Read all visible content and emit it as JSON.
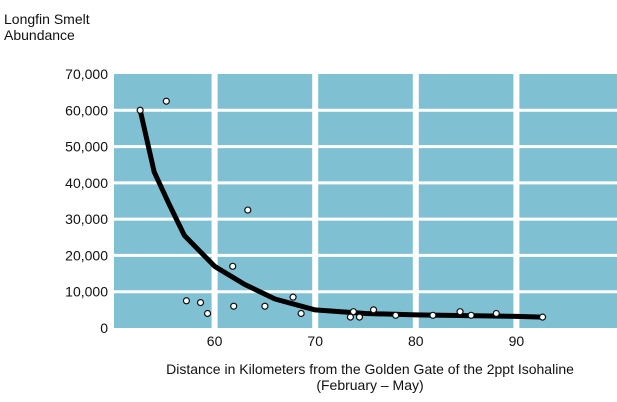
{
  "chart_data": {
    "type": "scatter",
    "title": "Longfin Smelt\nAbundance",
    "xlabel": "Distance in Kilometers from the Golden Gate of the 2ppt Isohaline\n(February – May)",
    "ylabel": "",
    "xlim": [
      50,
      100
    ],
    "ylim": [
      0,
      70000
    ],
    "x_ticks": [
      60,
      70,
      80,
      90
    ],
    "x_tick_labels": [
      "60",
      "70",
      "80",
      "90"
    ],
    "y_ticks": [
      0,
      10000,
      20000,
      30000,
      40000,
      50000,
      60000,
      70000
    ],
    "y_tick_labels": [
      "0",
      "10,000",
      "20,000",
      "30,000",
      "40,000",
      "50,000",
      "60,000",
      "70,000"
    ],
    "grid": true,
    "colors": {
      "plot_background": "#7fc1d3",
      "grid_lines": "#ffffff",
      "points_fill": "#ffffff",
      "points_stroke": "#111111",
      "curve": "#000000"
    },
    "series": [
      {
        "type": "scatter",
        "points": [
          {
            "x": 52.6,
            "y": 60000
          },
          {
            "x": 55.2,
            "y": 62500
          },
          {
            "x": 57.2,
            "y": 7500
          },
          {
            "x": 58.6,
            "y": 7000
          },
          {
            "x": 59.3,
            "y": 4000
          },
          {
            "x": 61.8,
            "y": 17000
          },
          {
            "x": 61.9,
            "y": 6000
          },
          {
            "x": 63.3,
            "y": 32500
          },
          {
            "x": 65.0,
            "y": 6000
          },
          {
            "x": 67.8,
            "y": 8500
          },
          {
            "x": 68.6,
            "y": 4000
          },
          {
            "x": 73.5,
            "y": 3000
          },
          {
            "x": 73.8,
            "y": 4500
          },
          {
            "x": 74.4,
            "y": 3000
          },
          {
            "x": 75.8,
            "y": 5000
          },
          {
            "x": 78.0,
            "y": 3500
          },
          {
            "x": 81.7,
            "y": 3500
          },
          {
            "x": 84.4,
            "y": 4500
          },
          {
            "x": 85.5,
            "y": 3500
          },
          {
            "x": 88.0,
            "y": 4000
          },
          {
            "x": 92.6,
            "y": 3000
          }
        ]
      },
      {
        "type": "line",
        "points": [
          {
            "x": 52.6,
            "y": 60000
          },
          {
            "x": 54.0,
            "y": 43000
          },
          {
            "x": 55.5,
            "y": 34000
          },
          {
            "x": 57.0,
            "y": 25500
          },
          {
            "x": 60.0,
            "y": 17000
          },
          {
            "x": 63.0,
            "y": 12000
          },
          {
            "x": 66.0,
            "y": 8000
          },
          {
            "x": 70.0,
            "y": 5000
          },
          {
            "x": 75.0,
            "y": 4000
          },
          {
            "x": 80.0,
            "y": 3600
          },
          {
            "x": 90.0,
            "y": 3200
          },
          {
            "x": 92.6,
            "y": 3000
          }
        ]
      }
    ]
  }
}
